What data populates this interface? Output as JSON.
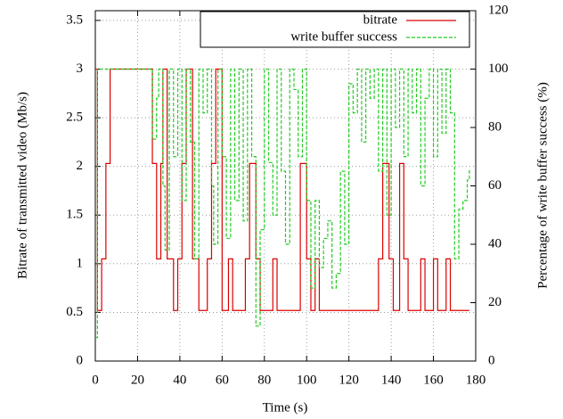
{
  "chart_data": {
    "type": "line",
    "steps": true,
    "xlabel": "Time (s)",
    "ylabel": "Bitrate of transmitted video (Mb/s)",
    "y2label": "Percentage of write buffer success (%)",
    "xlim": [
      0,
      180
    ],
    "xticks": [
      0,
      20,
      40,
      60,
      80,
      100,
      120,
      140,
      160,
      180
    ],
    "ylim": [
      0,
      3.6
    ],
    "yticks": [
      0,
      0.5,
      1,
      1.5,
      2,
      2.5,
      3,
      3.5
    ],
    "y2lim": [
      0,
      120
    ],
    "y2ticks": [
      0,
      20,
      40,
      60,
      80,
      100,
      120
    ],
    "grid": true,
    "legend": "top-right",
    "series": [
      {
        "name": "bitrate",
        "color": "#dd0000",
        "dash": false,
        "x": [
          0,
          1,
          3,
          5,
          7,
          27,
          29,
          31,
          32,
          34,
          37,
          39,
          41,
          43,
          46,
          49,
          53,
          55,
          57,
          60,
          63,
          65,
          71,
          73,
          76,
          78,
          84,
          86,
          97,
          100,
          102,
          104,
          106,
          134,
          136,
          139,
          141,
          144,
          146,
          148,
          154,
          156,
          160,
          162,
          166,
          168,
          177
        ],
        "values": [
          3.0,
          0.52,
          1.05,
          2.03,
          3.0,
          2.03,
          1.05,
          2.03,
          3.0,
          1.05,
          0.52,
          1.05,
          2.03,
          3.0,
          1.05,
          0.52,
          1.05,
          2.03,
          3.0,
          0.52,
          1.05,
          0.52,
          1.05,
          2.03,
          1.05,
          0.52,
          1.05,
          0.52,
          2.03,
          1.05,
          0.52,
          1.05,
          0.52,
          1.05,
          2.03,
          1.05,
          0.52,
          2.03,
          1.05,
          0.52,
          1.05,
          0.52,
          1.05,
          0.52,
          1.05,
          0.52,
          0.52
        ]
      },
      {
        "name": "write buffer success",
        "color": "#22cc22",
        "dash": true,
        "axis": "y2",
        "x": [
          0,
          1,
          27,
          29,
          30,
          32,
          33,
          35,
          37,
          39,
          41,
          43,
          45,
          47,
          49,
          51,
          53,
          55,
          56,
          58,
          60,
          62,
          64,
          66,
          68,
          70,
          72,
          74,
          76,
          78,
          80,
          82,
          84,
          86,
          88,
          90,
          92,
          94,
          96,
          98,
          100,
          102,
          104,
          106,
          108,
          110,
          112,
          114,
          116,
          118,
          120,
          122,
          124,
          126,
          128,
          130,
          132,
          134,
          136,
          138,
          140,
          142,
          144,
          146,
          148,
          150,
          152,
          154,
          156,
          158,
          160,
          162,
          164,
          166,
          168,
          170,
          172,
          174,
          176,
          177
        ],
        "values": [
          8,
          100,
          76,
          90,
          100,
          60,
          38,
          100,
          70,
          100,
          55,
          100,
          75,
          35,
          100,
          85,
          100,
          60,
          40,
          100,
          70,
          42,
          100,
          55,
          100,
          48,
          100,
          70,
          12,
          45,
          100,
          68,
          50,
          100,
          65,
          40,
          100,
          93,
          70,
          100,
          55,
          25,
          55,
          32,
          42,
          48,
          25,
          30,
          65,
          40,
          95,
          85,
          100,
          75,
          100,
          90,
          100,
          65,
          100,
          50,
          100,
          80,
          100,
          70,
          100,
          85,
          100,
          60,
          90,
          100,
          70,
          100,
          78,
          100,
          85,
          35,
          52,
          55,
          62,
          66
        ]
      }
    ]
  }
}
